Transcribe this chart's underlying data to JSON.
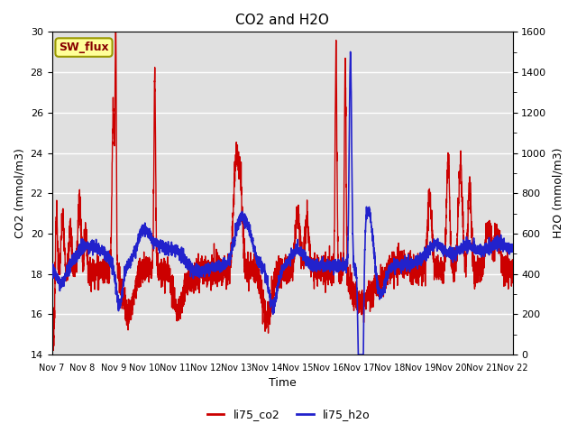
{
  "title": "CO2 and H2O",
  "xlabel": "Time",
  "ylabel_left": "CO2 (mmol/m3)",
  "ylabel_right": "H2O (mmol/m3)",
  "ylim_left": [
    14,
    30
  ],
  "ylim_right": [
    0,
    1600
  ],
  "yticks_left": [
    14,
    16,
    18,
    20,
    22,
    24,
    26,
    28,
    30
  ],
  "yticks_right": [
    0,
    200,
    400,
    600,
    800,
    1000,
    1200,
    1400,
    1600
  ],
  "xtick_labels": [
    "Nov 7",
    "Nov 8",
    "Nov 9",
    "Nov 10",
    "Nov 11",
    "Nov 12",
    "Nov 13",
    "Nov 14",
    "Nov 15",
    "Nov 16",
    "Nov 17",
    "Nov 18",
    "Nov 19",
    "Nov 20",
    "Nov 21",
    "Nov 22"
  ],
  "co2_color": "#cc0000",
  "h2o_color": "#2222cc",
  "plot_bg_color": "#e0e0e0",
  "legend_label_co2": "li75_co2",
  "legend_label_h2o": "li75_h2o",
  "annotation_text": "SW_flux",
  "annotation_bg": "#ffff99",
  "annotation_border": "#999900",
  "annotation_text_color": "#880000",
  "co2_linewidth": 1.0,
  "h2o_linewidth": 1.2,
  "title_fontsize": 11,
  "axis_label_fontsize": 9,
  "tick_fontsize": 8
}
